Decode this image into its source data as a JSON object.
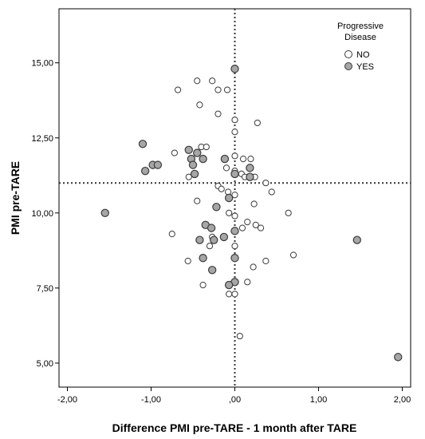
{
  "chart_data": {
    "type": "scatter",
    "xlabel": "Difference PMI pre-TARE - 1 month after TARE",
    "ylabel": "PMI pre-TARE",
    "xlim": [
      -2.1,
      2.1
    ],
    "ylim": [
      4.2,
      16.8
    ],
    "x_ticks": [
      -2.0,
      -1.0,
      0.0,
      1.0,
      2.0
    ],
    "x_tick_labels": [
      "-2,00",
      "-1,00",
      ",00",
      "1,00",
      "2,00"
    ],
    "y_ticks": [
      5.0,
      7.5,
      10.0,
      12.5,
      15.0
    ],
    "y_tick_labels": [
      "5,00",
      "7,50",
      "10,00",
      "12,50",
      "15,00"
    ],
    "reference_lines": {
      "x": 0.0,
      "y": 11.0
    },
    "grid": false,
    "legend": {
      "title_line1": "Progressive",
      "title_line2": "Disease",
      "position": "top-right",
      "entries": [
        {
          "label": "NO",
          "fill": "#ffffff"
        },
        {
          "label": "YES",
          "fill": "#a6a6a6"
        }
      ]
    },
    "colors": {
      "no_fill": "#ffffff",
      "yes_fill": "#a6a6a6",
      "stroke": "#3a3a3a"
    },
    "series": [
      {
        "name": "NO",
        "points": [
          [
            -0.68,
            14.1
          ],
          [
            -0.45,
            14.4
          ],
          [
            -0.27,
            14.4
          ],
          [
            -0.2,
            14.1
          ],
          [
            -0.09,
            14.1
          ],
          [
            -0.42,
            13.6
          ],
          [
            -0.2,
            13.3
          ],
          [
            0.0,
            13.1
          ],
          [
            0.27,
            13.0
          ],
          [
            0.0,
            12.7
          ],
          [
            -0.4,
            12.2
          ],
          [
            -0.34,
            12.2
          ],
          [
            -0.72,
            12.0
          ],
          [
            0.0,
            11.9
          ],
          [
            0.1,
            11.8
          ],
          [
            0.19,
            11.8
          ],
          [
            -0.1,
            11.5
          ],
          [
            0.0,
            11.4
          ],
          [
            0.08,
            11.3
          ],
          [
            0.12,
            11.2
          ],
          [
            0.2,
            11.2
          ],
          [
            0.24,
            11.2
          ],
          [
            -0.55,
            11.2
          ],
          [
            -0.48,
            11.3
          ],
          [
            -0.2,
            10.9
          ],
          [
            -0.16,
            10.8
          ],
          [
            -0.08,
            10.7
          ],
          [
            0.0,
            10.6
          ],
          [
            0.37,
            11.0
          ],
          [
            0.44,
            10.7
          ],
          [
            -0.45,
            10.4
          ],
          [
            0.23,
            10.3
          ],
          [
            -0.07,
            10.0
          ],
          [
            0.0,
            9.9
          ],
          [
            0.64,
            10.0
          ],
          [
            0.15,
            9.7
          ],
          [
            0.25,
            9.6
          ],
          [
            0.31,
            9.5
          ],
          [
            0.09,
            9.5
          ],
          [
            -0.75,
            9.3
          ],
          [
            -0.27,
            9.2
          ],
          [
            -0.3,
            8.9
          ],
          [
            0.0,
            8.9
          ],
          [
            -0.56,
            8.4
          ],
          [
            0.37,
            8.4
          ],
          [
            0.7,
            8.6
          ],
          [
            0.22,
            8.2
          ],
          [
            -0.38,
            7.6
          ],
          [
            0.15,
            7.7
          ],
          [
            -0.07,
            7.3
          ],
          [
            0.0,
            7.3
          ],
          [
            0.06,
            5.9
          ]
        ]
      },
      {
        "name": "YES",
        "points": [
          [
            0.0,
            14.8
          ],
          [
            -1.1,
            12.3
          ],
          [
            -0.55,
            12.1
          ],
          [
            -0.45,
            12.0
          ],
          [
            -0.52,
            11.8
          ],
          [
            -0.38,
            11.8
          ],
          [
            -0.12,
            11.8
          ],
          [
            -0.98,
            11.6
          ],
          [
            -0.92,
            11.6
          ],
          [
            -0.5,
            11.6
          ],
          [
            -1.07,
            11.4
          ],
          [
            -0.48,
            11.3
          ],
          [
            0.18,
            11.5
          ],
          [
            0.18,
            11.2
          ],
          [
            0.0,
            11.3
          ],
          [
            -0.07,
            10.5
          ],
          [
            -0.22,
            10.2
          ],
          [
            -1.55,
            10.0
          ],
          [
            -0.35,
            9.6
          ],
          [
            -0.28,
            9.5
          ],
          [
            0.0,
            9.4
          ],
          [
            -0.13,
            9.2
          ],
          [
            -0.42,
            9.1
          ],
          [
            -0.25,
            9.1
          ],
          [
            1.46,
            9.1
          ],
          [
            -0.38,
            8.5
          ],
          [
            0.0,
            8.5
          ],
          [
            -0.27,
            8.1
          ],
          [
            0.0,
            7.7
          ],
          [
            -0.07,
            7.6
          ],
          [
            1.95,
            5.2
          ]
        ]
      }
    ]
  }
}
